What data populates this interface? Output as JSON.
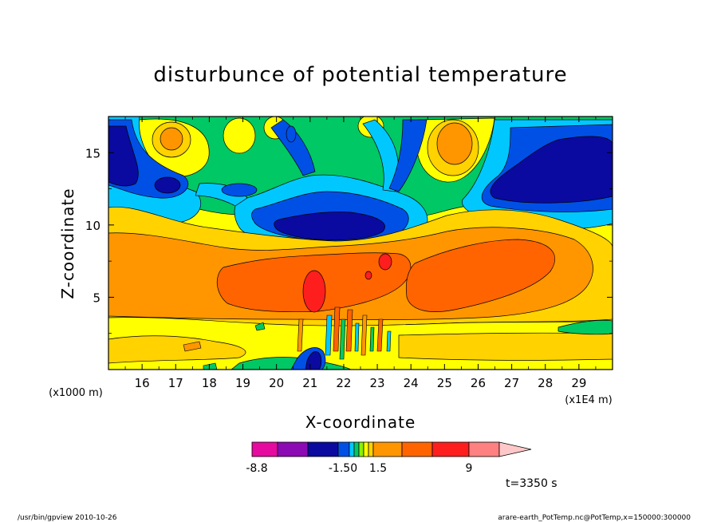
{
  "chart_data": {
    "type": "heatmap",
    "title": "disturbunce of potential temperature",
    "xlabel": "X-coordinate",
    "ylabel": "Z-coordinate",
    "x_unit_label": "(x1E4 m)",
    "y_unit_label": "(x1000 m)",
    "xlim": [
      15.0,
      30.0
    ],
    "ylim": [
      0,
      17.5
    ],
    "x_ticks": [
      16,
      17,
      18,
      19,
      20,
      21,
      22,
      23,
      24,
      25,
      26,
      27,
      28,
      29
    ],
    "y_ticks": [
      5,
      10,
      15
    ],
    "time_label": "t=3350 s",
    "colorbar": {
      "tick_labels": [
        "-8.8",
        "-1.50",
        "1.5",
        "9"
      ],
      "tick_values": [
        -8.8,
        -1.5,
        1.5,
        9
      ],
      "colors": [
        "#e60aa0",
        "#8c0ab4",
        "#0a0aa0",
        "#0050e6",
        "#00c8ff",
        "#00c864",
        "#8cf000",
        "#ffff00",
        "#ffd200",
        "#ff9600",
        "#ff6400",
        "#ff1e1e",
        "#ff8080",
        "#ffc8c8"
      ]
    }
  },
  "footer": {
    "left": "/usr/bin/gpview  2010-10-26",
    "right": "arare-earth_PotTemp.nc@PotTemp,x=150000:300000"
  }
}
